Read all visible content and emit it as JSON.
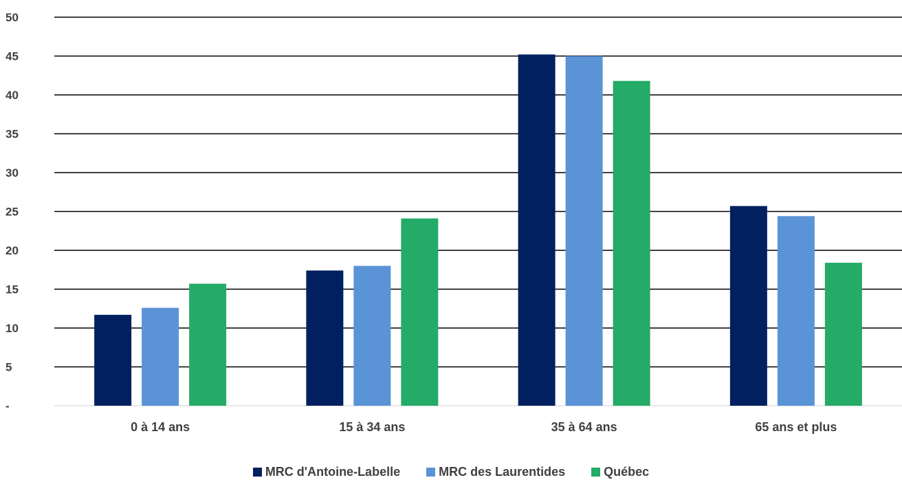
{
  "chart_data": {
    "type": "bar",
    "categories": [
      "0 à 14 ans",
      "15 à 34 ans",
      "35 à 64 ans",
      "65 ans et plus"
    ],
    "series": [
      {
        "name": "MRC d'Antoine-Labelle",
        "color": "#002060",
        "values": [
          11.7,
          17.4,
          45.2,
          25.7
        ]
      },
      {
        "name": "MRC des Laurentides",
        "color": "#5B93D7",
        "values": [
          12.6,
          18.0,
          45.0,
          24.4
        ]
      },
      {
        "name": "Québec",
        "color": "#24AB67",
        "values": [
          15.7,
          24.1,
          41.8,
          18.4
        ]
      }
    ],
    "y_ticks": [
      "-",
      "5",
      "10",
      "15",
      "20",
      "25",
      "30",
      "35",
      "40",
      "45",
      "50"
    ],
    "ylim": [
      0,
      50
    ],
    "grid": true,
    "legend_position": "bottom"
  }
}
